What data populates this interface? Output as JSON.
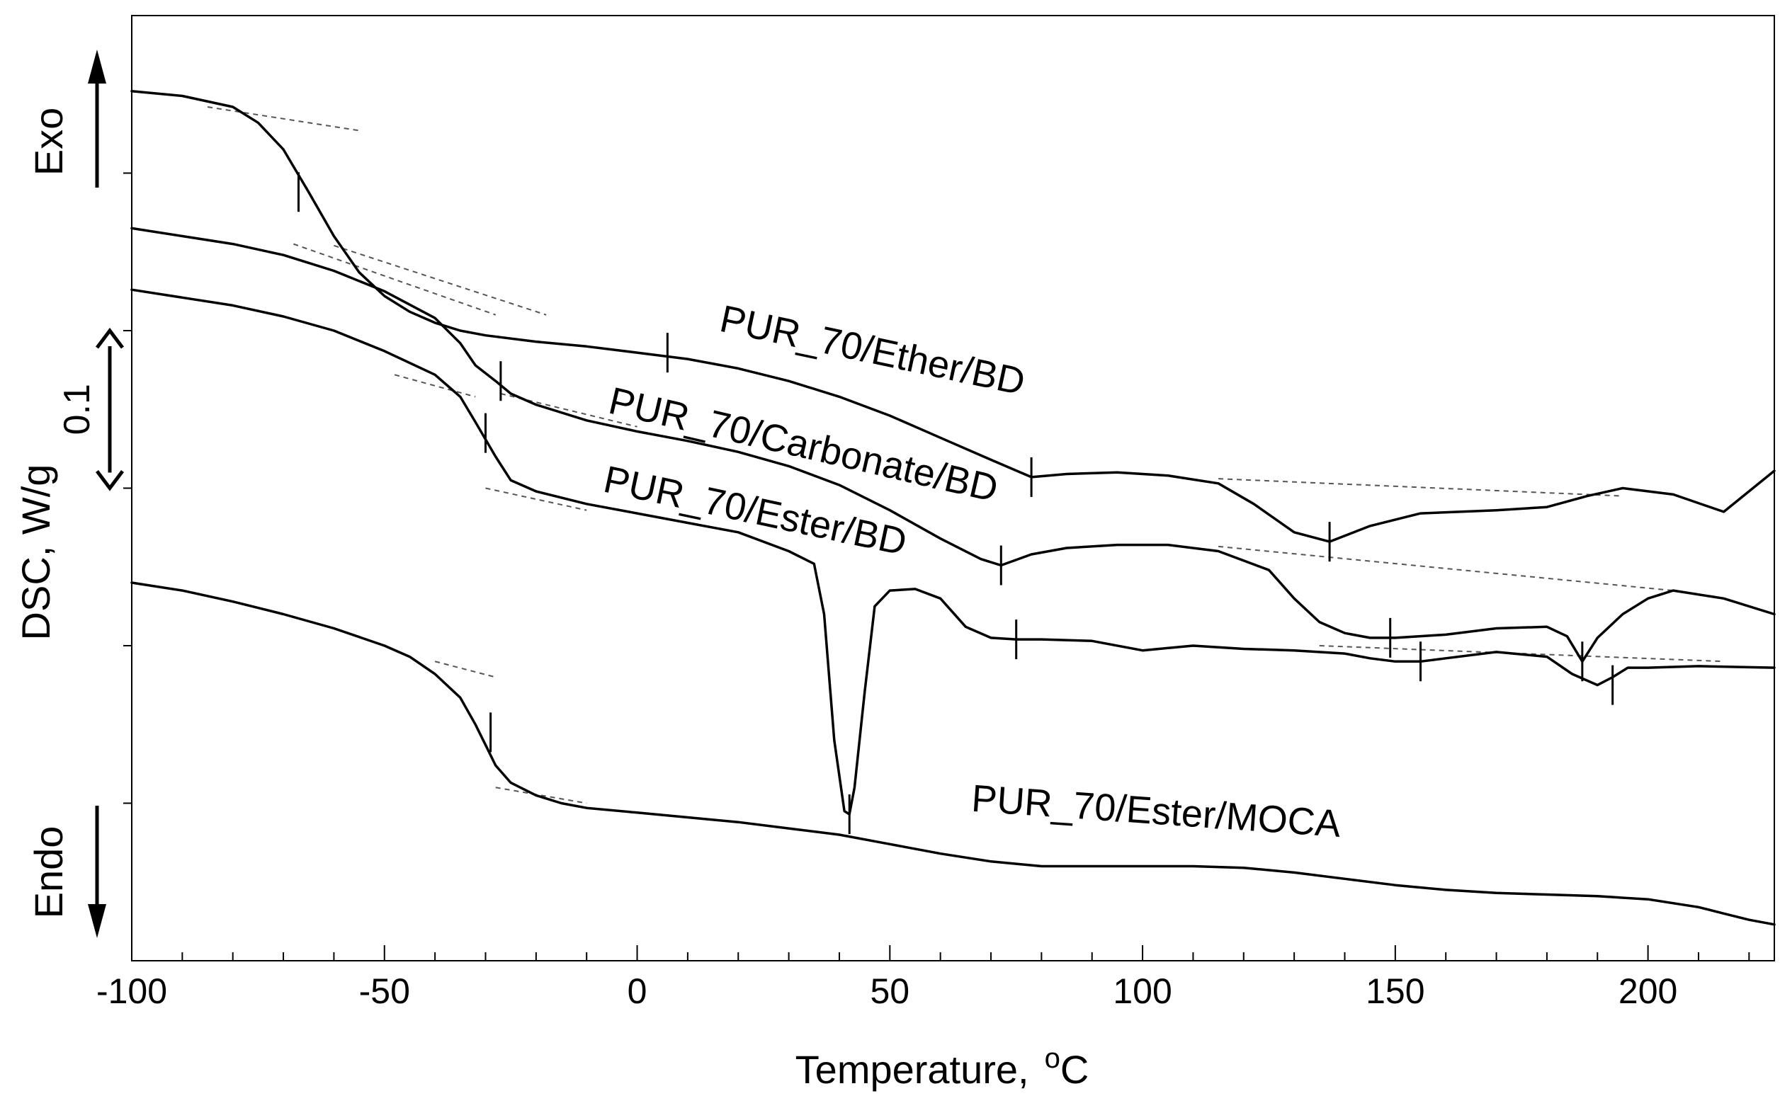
{
  "chart_data": {
    "type": "line",
    "title": "",
    "xlabel": "Temperature,",
    "xlabel_unit_superscript": "o",
    "xlabel_unit": "C",
    "ylabel": "DSC, W/g",
    "xlim": [
      -100,
      225
    ],
    "x_ticks": [
      -100,
      -50,
      0,
      50,
      100,
      150,
      200
    ],
    "x_tick_labels": [
      "-100",
      "-50",
      "0",
      "50",
      "100",
      "150",
      "200"
    ],
    "y_units": "offset units (0.1 W/g scale bar = 1 unit)",
    "ylim": [
      0,
      6
    ],
    "grid": false,
    "scale_bar": {
      "label": "0.1",
      "from": 3.0,
      "to": 4.0
    },
    "exo_label": "Exo",
    "endo_label": "Endo",
    "series": [
      {
        "name": "PUR_70/Ether/BD",
        "x": [
          -100,
          -90,
          -80,
          -75,
          -70,
          -65,
          -60,
          -55,
          -50,
          -45,
          -40,
          -35,
          -30,
          -20,
          -10,
          0,
          10,
          20,
          30,
          40,
          50,
          60,
          70,
          78,
          85,
          95,
          105,
          115,
          122,
          130,
          137,
          145,
          155,
          170,
          180,
          188,
          195,
          205,
          215,
          225
        ],
        "y": [
          5.52,
          5.49,
          5.42,
          5.32,
          5.15,
          4.88,
          4.6,
          4.37,
          4.22,
          4.12,
          4.05,
          4.0,
          3.97,
          3.93,
          3.9,
          3.86,
          3.82,
          3.76,
          3.68,
          3.58,
          3.46,
          3.32,
          3.18,
          3.07,
          3.09,
          3.1,
          3.08,
          3.03,
          2.9,
          2.72,
          2.66,
          2.76,
          2.84,
          2.86,
          2.88,
          2.95,
          3.0,
          2.96,
          2.85,
          3.11
        ]
      },
      {
        "name": "PUR_70/Carbonate/BD",
        "x": [
          -100,
          -90,
          -80,
          -70,
          -60,
          -50,
          -40,
          -35,
          -32,
          -28,
          -25,
          -20,
          -10,
          0,
          10,
          20,
          30,
          40,
          50,
          60,
          68,
          72,
          78,
          85,
          95,
          105,
          115,
          125,
          130,
          135,
          140,
          145,
          150,
          160,
          170,
          180,
          184,
          187,
          190,
          195,
          200,
          205,
          215,
          225
        ],
        "y": [
          4.65,
          4.6,
          4.55,
          4.48,
          4.38,
          4.25,
          4.08,
          3.92,
          3.78,
          3.68,
          3.6,
          3.53,
          3.43,
          3.36,
          3.3,
          3.23,
          3.14,
          3.02,
          2.86,
          2.68,
          2.55,
          2.51,
          2.58,
          2.62,
          2.64,
          2.64,
          2.6,
          2.48,
          2.3,
          2.15,
          2.08,
          2.05,
          2.05,
          2.07,
          2.11,
          2.12,
          2.06,
          1.9,
          2.05,
          2.2,
          2.3,
          2.35,
          2.3,
          2.2
        ]
      },
      {
        "name": "PUR_70/Ester/BD",
        "x": [
          -100,
          -90,
          -80,
          -70,
          -60,
          -50,
          -40,
          -35,
          -32,
          -28,
          -25,
          -20,
          -10,
          0,
          10,
          20,
          30,
          35,
          37,
          39,
          41,
          42,
          43,
          45,
          47,
          50,
          55,
          60,
          65,
          70,
          75,
          80,
          90,
          100,
          110,
          120,
          130,
          140,
          145,
          150,
          155,
          160,
          170,
          180,
          185,
          190,
          193,
          196,
          200,
          210,
          225
        ],
        "y": [
          4.26,
          4.21,
          4.16,
          4.09,
          4.0,
          3.87,
          3.72,
          3.58,
          3.42,
          3.2,
          3.05,
          2.98,
          2.9,
          2.84,
          2.78,
          2.72,
          2.6,
          2.52,
          2.2,
          1.4,
          0.95,
          0.93,
          1.1,
          1.7,
          2.25,
          2.35,
          2.36,
          2.3,
          2.12,
          2.05,
          2.04,
          2.04,
          2.03,
          1.97,
          2.0,
          1.98,
          1.97,
          1.95,
          1.92,
          1.9,
          1.9,
          1.92,
          1.96,
          1.93,
          1.82,
          1.75,
          1.8,
          1.86,
          1.86,
          1.87,
          1.86
        ]
      },
      {
        "name": "PUR_70/Ester/MOCA",
        "x": [
          -100,
          -90,
          -80,
          -70,
          -60,
          -50,
          -45,
          -40,
          -35,
          -32,
          -30,
          -28,
          -25,
          -20,
          -15,
          -10,
          0,
          10,
          20,
          30,
          40,
          50,
          60,
          70,
          80,
          90,
          100,
          110,
          120,
          130,
          140,
          150,
          160,
          170,
          180,
          190,
          200,
          210,
          215,
          220,
          225
        ],
        "y": [
          2.4,
          2.35,
          2.28,
          2.2,
          2.11,
          2.0,
          1.93,
          1.82,
          1.67,
          1.5,
          1.37,
          1.24,
          1.13,
          1.05,
          1.0,
          0.97,
          0.94,
          0.91,
          0.88,
          0.84,
          0.8,
          0.74,
          0.68,
          0.63,
          0.6,
          0.6,
          0.6,
          0.6,
          0.59,
          0.56,
          0.52,
          0.48,
          0.45,
          0.43,
          0.42,
          0.41,
          0.39,
          0.34,
          0.3,
          0.26,
          0.23
        ]
      }
    ],
    "tangent_lines": [
      {
        "series": "PUR_70/Ether/BD",
        "points": [
          [
            -85,
            5.42
          ],
          [
            -55,
            5.27
          ]
        ]
      },
      {
        "series": "PUR_70/Ether/BD",
        "points": [
          [
            -60,
            4.54
          ],
          [
            -18,
            4.1
          ]
        ]
      },
      {
        "series": "PUR_70/Ether/BD",
        "points": [
          [
            115,
            3.06
          ],
          [
            195,
            2.95
          ]
        ]
      },
      {
        "series": "PUR_70/Carbonate/BD",
        "points": [
          [
            -68,
            4.55
          ],
          [
            -28,
            4.1
          ]
        ]
      },
      {
        "series": "PUR_70/Carbonate/BD",
        "points": [
          [
            -27,
            3.6
          ],
          [
            0,
            3.39
          ]
        ]
      },
      {
        "series": "PUR_70/Carbonate/BD",
        "points": [
          [
            115,
            2.63
          ],
          [
            205,
            2.35
          ]
        ]
      },
      {
        "series": "PUR_70/Ester/BD",
        "points": [
          [
            -48,
            3.72
          ],
          [
            -32,
            3.58
          ]
        ]
      },
      {
        "series": "PUR_70/Ester/BD",
        "points": [
          [
            -30,
            3.0
          ],
          [
            -10,
            2.86
          ]
        ]
      },
      {
        "series": "PUR_70/Ester/BD",
        "points": [
          [
            135,
            2.0
          ],
          [
            215,
            1.9
          ]
        ]
      },
      {
        "series": "PUR_70/Ester/MOCA",
        "points": [
          [
            -40,
            1.9
          ],
          [
            -28,
            1.8
          ]
        ]
      },
      {
        "series": "PUR_70/Ester/MOCA",
        "points": [
          [
            -28,
            1.1
          ],
          [
            -10,
            1.0
          ]
        ]
      }
    ],
    "markers": [
      {
        "series": "PUR_70/Ether/BD",
        "x": -67,
        "y": 4.88
      },
      {
        "series": "PUR_70/Ether/BD",
        "x": 6,
        "y": 3.86
      },
      {
        "series": "PUR_70/Ether/BD",
        "x": 78,
        "y": 3.07
      },
      {
        "series": "PUR_70/Ether/BD",
        "x": 137,
        "y": 2.66
      },
      {
        "series": "PUR_70/Carbonate/BD",
        "x": -27,
        "y": 3.68
      },
      {
        "series": "PUR_70/Carbonate/BD",
        "x": 72,
        "y": 2.51
      },
      {
        "series": "PUR_70/Carbonate/BD",
        "x": 149,
        "y": 2.05
      },
      {
        "series": "PUR_70/Carbonate/BD",
        "x": 187,
        "y": 1.9
      },
      {
        "series": "PUR_70/Ester/BD",
        "x": -30,
        "y": 3.35
      },
      {
        "series": "PUR_70/Ester/BD",
        "x": 42,
        "y": 0.93
      },
      {
        "series": "PUR_70/Ester/BD",
        "x": 75,
        "y": 2.04
      },
      {
        "series": "PUR_70/Ester/BD",
        "x": 155,
        "y": 1.9
      },
      {
        "series": "PUR_70/Ester/BD",
        "x": 193,
        "y": 1.75
      },
      {
        "series": "PUR_70/Ester/MOCA",
        "x": -29,
        "y": 1.45
      }
    ],
    "annotations": [
      {
        "text": "PUR_70/Ether/BD",
        "x": 16,
        "y": 4.0,
        "rotate": 12
      },
      {
        "text": "PUR_70/Carbonate/BD",
        "x": -6,
        "y": 3.48,
        "rotate": 13
      },
      {
        "text": "PUR_70/Ester/BD",
        "x": -7,
        "y": 2.98,
        "rotate": 12
      },
      {
        "text": "PUR_70/Ester/MOCA",
        "x": 66,
        "y": 0.95,
        "rotate": 4
      }
    ]
  }
}
